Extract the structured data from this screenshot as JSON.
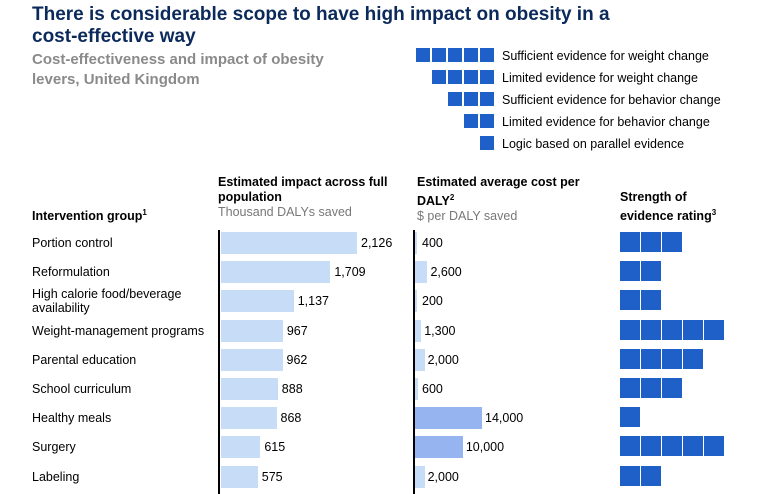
{
  "title": "There is considerable scope to have high impact on obesity in a cost-effective way",
  "subtitle": "Cost-effectiveness and impact of obesity levers, United Kingdom",
  "legend": [
    {
      "squares": 5,
      "label": "Sufficient evidence for weight change"
    },
    {
      "squares": 4,
      "label": "Limited evidence for weight change"
    },
    {
      "squares": 3,
      "label": "Sufficient evidence for behavior change"
    },
    {
      "squares": 2,
      "label": "Limited evidence for behavior change"
    },
    {
      "squares": 1,
      "label": "Logic based on parallel evidence"
    }
  ],
  "columns": {
    "group": {
      "title": "Intervention group",
      "footnote": "1"
    },
    "impact": {
      "title": "Estimated impact across full population",
      "unit": "Thousand DALYs saved"
    },
    "cost": {
      "title": "Estimated average cost per DALY",
      "footnote": "2",
      "unit": "$ per DALY saved"
    },
    "strength": {
      "title": "Strength of evidence rating",
      "footnote": "3"
    }
  },
  "colors": {
    "impact_bar": "#c6dcf7",
    "cost_bar": "#c6dcf7",
    "cost_bar_high": "#96b4f0",
    "evidence": "#1f5fc8",
    "title": "#0b2a5b"
  },
  "chart_data": {
    "type": "bar",
    "categories": [
      "Portion control",
      "Reformulation",
      "High calorie food/beverage availability",
      "Weight-management programs",
      "Parental education",
      "School curriculum",
      "Healthy meals",
      "Surgery",
      "Labeling"
    ],
    "series": [
      {
        "name": "Estimated impact (Thousand DALYs saved)",
        "values": [
          2126,
          1709,
          1137,
          967,
          962,
          888,
          868,
          615,
          575
        ],
        "labels": [
          "2,126",
          "1,709",
          "1,137",
          "967",
          "962",
          "888",
          "868",
          "615",
          "575"
        ]
      },
      {
        "name": "Estimated average cost per DALY ($)",
        "values": [
          400,
          2600,
          200,
          1300,
          2000,
          600,
          14000,
          10000,
          2000
        ],
        "labels": [
          "400",
          "2,600",
          "200",
          "1,300",
          "2,000",
          "600",
          "14,000",
          "10,000",
          "2,000"
        ]
      },
      {
        "name": "Strength of evidence rating",
        "values": [
          3,
          2,
          2,
          5,
          4,
          3,
          1,
          5,
          2
        ]
      }
    ],
    "impact_max": 2126,
    "cost_max": 14000
  }
}
